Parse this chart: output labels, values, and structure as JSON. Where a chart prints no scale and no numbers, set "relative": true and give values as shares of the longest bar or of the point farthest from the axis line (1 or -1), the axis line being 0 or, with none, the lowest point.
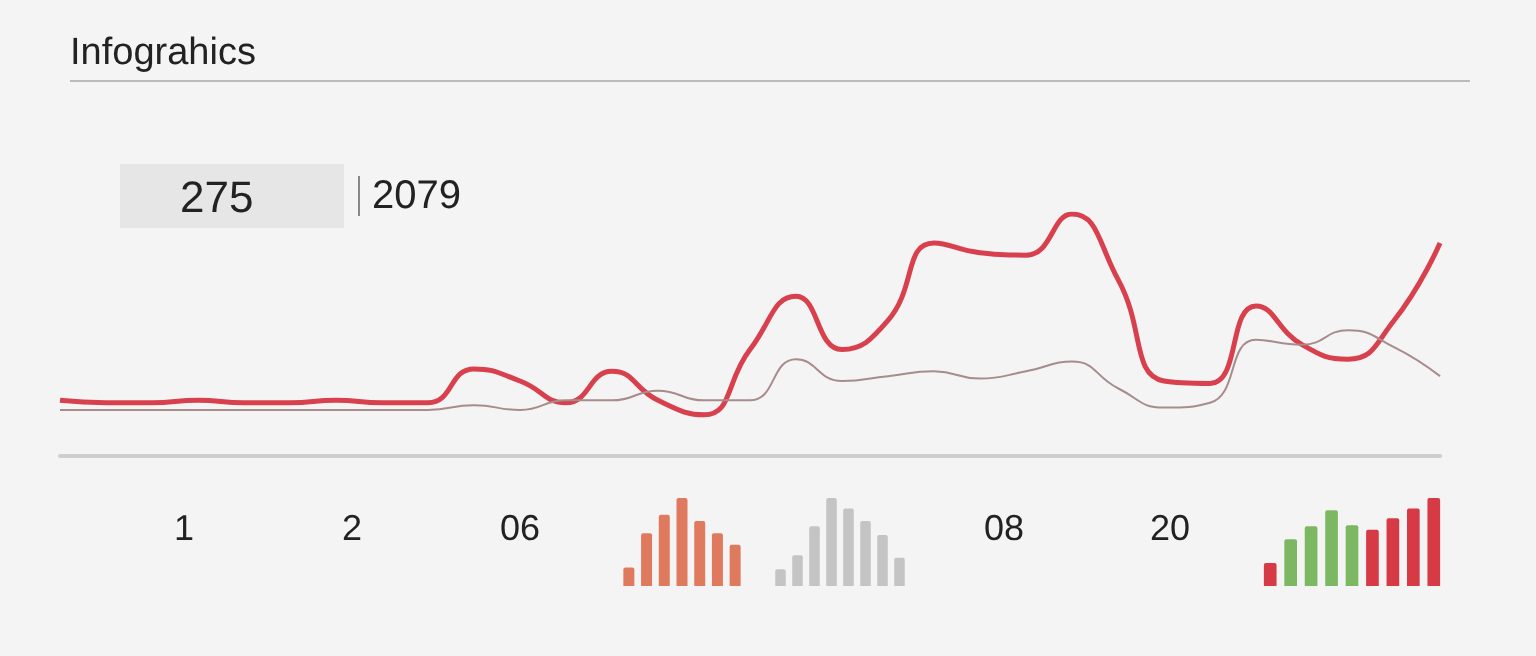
{
  "chart_data": [
    {
      "type": "other",
      "title": "Infograhics",
      "annotations": [
        "275",
        "2079",
        "1",
        "2",
        "06",
        "08",
        "20"
      ]
    },
    {
      "type": "line",
      "relative": true,
      "categories": [
        null,
        null,
        null,
        null,
        null,
        null,
        null,
        null,
        null,
        null,
        null,
        null,
        null,
        null,
        null,
        null,
        null,
        null,
        null,
        null,
        null,
        null,
        null,
        null,
        null,
        null,
        null,
        null,
        null,
        null,
        null
      ],
      "marker": "none",
      "grid": false,
      "series": [
        {
          "color": "#d9404e",
          "values": [
            0.23,
            0.22,
            0.22,
            0.23,
            0.22,
            0.22,
            0.23,
            0.22,
            0.22,
            0.36,
            0.31,
            0.22,
            0.35,
            0.23,
            0.17,
            0.44,
            0.66,
            0.44,
            0.56,
            0.88,
            0.84,
            0.83,
            1,
            0.73,
            0.31,
            0.3,
            0.62,
            0.46,
            0.4,
            0.56,
            0.88
          ]
        },
        {
          "color": "#a88c8c",
          "values": [
            0.19,
            0.19,
            0.19,
            0.19,
            0.19,
            0.19,
            0.19,
            0.19,
            0.19,
            0.21,
            0.19,
            0.23,
            0.23,
            0.27,
            0.23,
            0.23,
            0.4,
            0.31,
            0.33,
            0.35,
            0.32,
            0.35,
            0.39,
            0.28,
            0.2,
            0.22,
            0.48,
            0.46,
            0.52,
            0.45,
            0.33
          ]
        }
      ]
    },
    {
      "type": "bar",
      "relative": true,
      "categories": [
        null,
        null,
        null,
        null,
        null,
        null,
        null
      ],
      "values": [
        0.21,
        0.6,
        0.81,
        1,
        0.74,
        0.6,
        0.47
      ],
      "color": "#e07a5f"
    },
    {
      "type": "bar",
      "relative": true,
      "categories": [
        null,
        null,
        null,
        null,
        null,
        null,
        null,
        null
      ],
      "values": [
        0.19,
        0.35,
        0.68,
        1,
        0.88,
        0.74,
        0.58,
        0.32
      ],
      "color": "#c4c4c4"
    },
    {
      "type": "bar",
      "relative": true,
      "categories": [
        null,
        null,
        null,
        null,
        null,
        null,
        null,
        null,
        null
      ],
      "values": [
        0.26,
        0.53,
        0.68,
        0.86,
        0.69,
        0.64,
        0.77,
        0.88,
        1
      ],
      "colors": [
        "#d63b45",
        "#7cb862",
        "#7cb862",
        "#7cb862",
        "#7cb862",
        "#d63b45",
        "#d63b45",
        "#d63b45",
        "#d63b45"
      ]
    }
  ]
}
